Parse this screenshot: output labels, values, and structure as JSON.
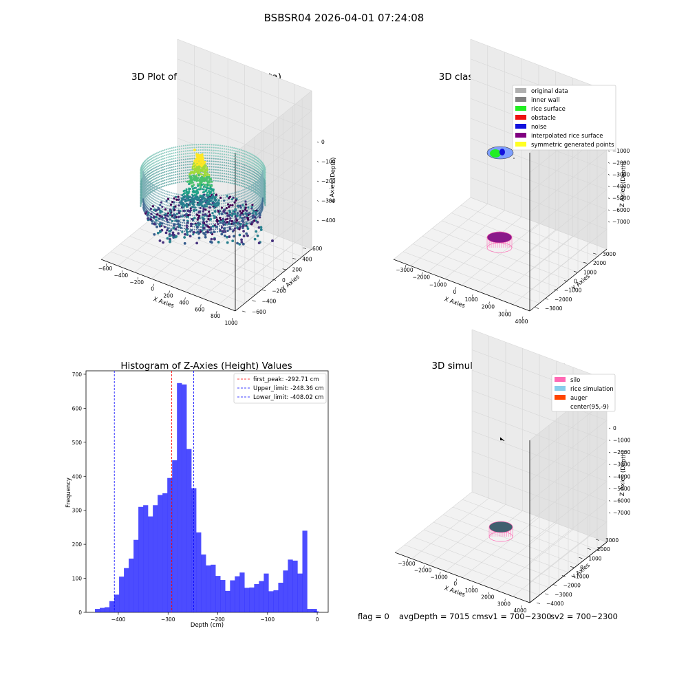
{
  "figure": {
    "suptitle": "BSBSR04 2026-04-01 07:24:08"
  },
  "panels": {
    "raw": {
      "title": "3D Plot of Silo Interior(row data)",
      "xlabel": "X Axies",
      "ylabel": "Y Axies",
      "zlabel": "Z Axies (Depth)",
      "xticks": [
        "−600",
        "−400",
        "−200",
        "0",
        "200",
        "400",
        "600",
        "800",
        "1000"
      ],
      "yticks": [
        "−600",
        "−400",
        "−200",
        "0",
        "200",
        "400",
        "600"
      ],
      "zticks": [
        "0",
        "−100",
        "−200",
        "−300",
        "−400"
      ]
    },
    "classify": {
      "title": "3D classify of Silo Interior",
      "xlabel": "X Axies",
      "ylabel": "Y Axies",
      "zlabel": "Z Axies (Depth)",
      "xticks": [
        "−3000",
        "−2000",
        "−1000",
        "0",
        "1000",
        "2000",
        "3000",
        "4000"
      ],
      "yticks": [
        "−3000",
        "−2000",
        "−1000",
        "0",
        "1000",
        "2000",
        "3000"
      ],
      "zticks": [
        "0",
        "−1000",
        "−2000",
        "−3000",
        "−4000",
        "−5000",
        "−6000",
        "−7000"
      ],
      "legend": [
        {
          "label": "original data",
          "color": "#b0b0b0"
        },
        {
          "label": "inner wall",
          "color": "#808080"
        },
        {
          "label": "rice surface",
          "color": "#22ee22"
        },
        {
          "label": "obstacle",
          "color": "#ee1111"
        },
        {
          "label": "noise",
          "color": "#1111dd"
        },
        {
          "label": "interpolated rice surface",
          "color": "#800080"
        },
        {
          "label": "symmetric generated points",
          "color": "#ffff22"
        }
      ]
    },
    "simulation": {
      "title": "3D simulation of Silo Interior",
      "xlabel": "X Axies",
      "ylabel": "Y Axies",
      "zlabel": "Z Axies (Depth)",
      "xticks": [
        "−3000",
        "−2000",
        "−1000",
        "0",
        "1000",
        "2000",
        "3000",
        "4000"
      ],
      "yticks": [
        "−4000",
        "−3000",
        "−2000",
        "−1000",
        "0",
        "1000",
        "2000",
        "3000"
      ],
      "zticks": [
        "0",
        "−1000",
        "−2000",
        "−3000",
        "−4000",
        "−5000",
        "−6000",
        "−7000"
      ],
      "legend": [
        {
          "label": "silo",
          "color": "#ff69b4"
        },
        {
          "label": "rice simulation",
          "color": "#87ceeb"
        },
        {
          "label": "auger",
          "color": "#ff4500"
        },
        {
          "label": "center(95,-9)",
          "color": "#ffffff"
        }
      ]
    }
  },
  "status": {
    "flag": "flag = 0",
    "avg_depth": "avgDepth = 7015 cmsv1 = 700~2300",
    "sv2": "sv2 = 700~2300"
  },
  "chart_data": {
    "type": "bar",
    "title": "Histogram of Z-Axies (Height) Values",
    "xlabel": "Depth (cm)",
    "ylabel": "Frequency",
    "xlim": [
      -465,
      22
    ],
    "ylim": [
      0,
      710
    ],
    "xticks": [
      -400,
      -300,
      -200,
      -100,
      0
    ],
    "yticks": [
      0,
      100,
      200,
      300,
      400,
      500,
      600,
      700
    ],
    "bar_color": "#0000ff",
    "bin_width": 9.7,
    "bins_start": [
      -447.0,
      -437.3,
      -427.6,
      -417.9,
      -408.2,
      -398.5,
      -388.8,
      -379.1,
      -369.4,
      -359.7,
      -350.0,
      -340.3,
      -330.6,
      -320.9,
      -311.2,
      -301.5,
      -291.8,
      -282.1,
      -272.4,
      -262.7,
      -253.0,
      -243.3,
      -233.6,
      -223.9,
      -214.2,
      -204.5,
      -194.8,
      -185.1,
      -175.4,
      -165.7,
      -156.0,
      -146.3,
      -136.6,
      -126.9,
      -117.2,
      -107.5,
      -97.8,
      -88.1,
      -78.4,
      -68.7,
      -59.0,
      -49.3,
      -39.6,
      -29.9,
      -20.2,
      -10.5
    ],
    "counts": [
      10,
      13,
      15,
      33,
      52,
      105,
      130,
      158,
      213,
      310,
      315,
      282,
      315,
      345,
      350,
      395,
      447,
      674,
      670,
      480,
      365,
      235,
      170,
      138,
      140,
      107,
      95,
      63,
      94,
      106,
      117,
      72,
      73,
      83,
      92,
      114,
      62,
      65,
      87,
      123,
      155,
      152,
      114,
      240,
      10,
      10
    ],
    "extra_bars": [
      {
        "start": -7.0,
        "count": 3
      }
    ],
    "vlines": [
      {
        "label": "first_peak: -292.71 cm",
        "x": -292.71,
        "color": "#ff0000"
      },
      {
        "label": "Upper_limit: -248.36 cm",
        "x": -248.36,
        "color": "#0000ff"
      },
      {
        "label": "Lower_limit: -408.02 cm",
        "x": -408.02,
        "color": "#0000ff"
      }
    ]
  }
}
